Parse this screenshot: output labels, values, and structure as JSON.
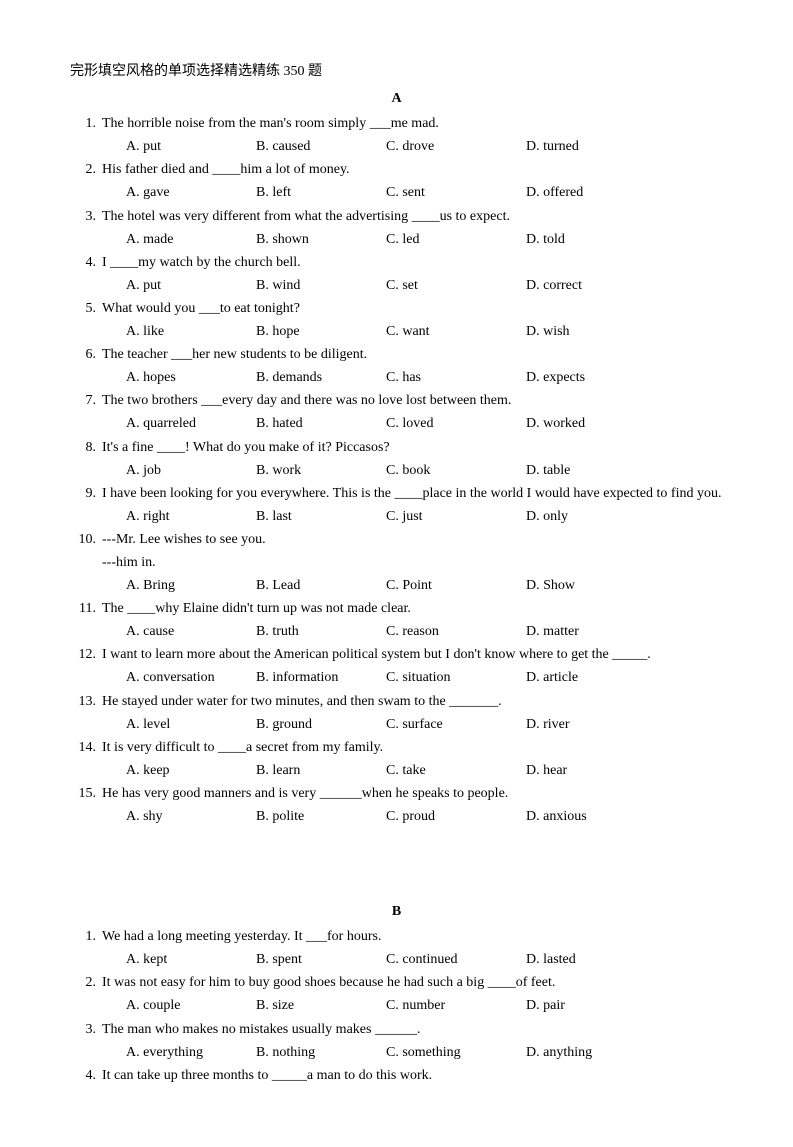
{
  "title": "完形填空风格的单项选择精选精练 350 题",
  "sectionA": {
    "letter": "A",
    "questions": [
      {
        "n": "1.",
        "stem": "The horrible noise from the man's room simply ___me mad.",
        "a": "A. put",
        "b": "B. caused",
        "c": "C. drove",
        "d": "D. turned"
      },
      {
        "n": "2.",
        "stem": "His father died and ____him a lot of money.",
        "a": "A. gave",
        "b": "B. left",
        "c": "C. sent",
        "d": "D. offered"
      },
      {
        "n": "3.",
        "stem": "The hotel was very different from what the advertising ____us to expect.",
        "a": "A. made",
        "b": "B. shown",
        "c": "C. led",
        "d": "D. told"
      },
      {
        "n": "4.",
        "stem": "I ____my watch by the church bell.",
        "a": "A. put",
        "b": "B. wind",
        "c": "C. set",
        "d": "D. correct"
      },
      {
        "n": "5.",
        "stem": "What would you ___to eat tonight?",
        "a": "A. like",
        "b": "B. hope",
        "c": "C. want",
        "d": "D. wish"
      },
      {
        "n": "6.",
        "stem": "The teacher ___her new students to be diligent.",
        "a": "A. hopes",
        "b": "B. demands",
        "c": "C. has",
        "d": "D. expects"
      },
      {
        "n": "7.",
        "stem": "The two brothers ___every day and there was no love lost between them.",
        "a": "A. quarreled",
        "b": "B. hated",
        "c": "C. loved",
        "d": "D. worked"
      },
      {
        "n": "8.",
        "stem": "It's a fine ____! What do you make of it? Piccasos?",
        "a": "A. job",
        "b": "B. work",
        "c": "C. book",
        "d": "D. table"
      },
      {
        "n": "9.",
        "stem": "I have been looking for you everywhere. This is the ____place in the world I would have expected to find you.",
        "a": "A. right",
        "b": "B. last",
        "c": "C. just",
        "d": "D. only"
      },
      {
        "n": "10.",
        "stem": "---Mr. Lee wishes to see you.",
        "stem2": "---him in.",
        "a": "A. Bring",
        "b": "B. Lead",
        "c": "C. Point",
        "d": "D. Show"
      },
      {
        "n": "11.",
        "stem": "The ____why Elaine didn't turn up was not made clear.",
        "a": "A. cause",
        "b": "B. truth",
        "c": "C. reason",
        "d": "D. matter"
      },
      {
        "n": "12.",
        "stem": "I want to learn more about the American political system but I don't know where to get the _____.",
        "a": "A. conversation",
        "b": "B. information",
        "c": "C. situation",
        "d": "D. article"
      },
      {
        "n": "13.",
        "stem": "He stayed under water for two minutes, and then swam to the _______.",
        "a": "A. level",
        "b": "B. ground",
        "c": "C. surface",
        "d": "D. river"
      },
      {
        "n": "14.",
        "stem": "It is very difficult to ____a secret from my family.",
        "a": "A. keep",
        "b": "B. learn",
        "c": "C. take",
        "d": "D. hear"
      },
      {
        "n": "15.",
        "stem": "He has very good manners and is very ______when he speaks to people.",
        "a": "A. shy",
        "b": "B. polite",
        "c": "C. proud",
        "d": "D. anxious"
      }
    ]
  },
  "sectionB": {
    "letter": "B",
    "questions": [
      {
        "n": "1.",
        "stem": "We had a long meeting yesterday. It ___for hours.",
        "a": "A. kept",
        "b": "B. spent",
        "c": "C. continued",
        "d": "D. lasted"
      },
      {
        "n": "2.",
        "stem": "It was not easy for him to buy good shoes because he had such a big ____of feet.",
        "a": "A. couple",
        "b": "B. size",
        "c": "C. number",
        "d": "D. pair"
      },
      {
        "n": "3.",
        "stem": "The man who makes no mistakes usually makes ______.",
        "a": "A. everything",
        "b": "B. nothing",
        "c": "C. something",
        "d": "D. anything"
      },
      {
        "n": "4.",
        "stem": "It can take up three months to _____a man to do this work."
      }
    ]
  }
}
